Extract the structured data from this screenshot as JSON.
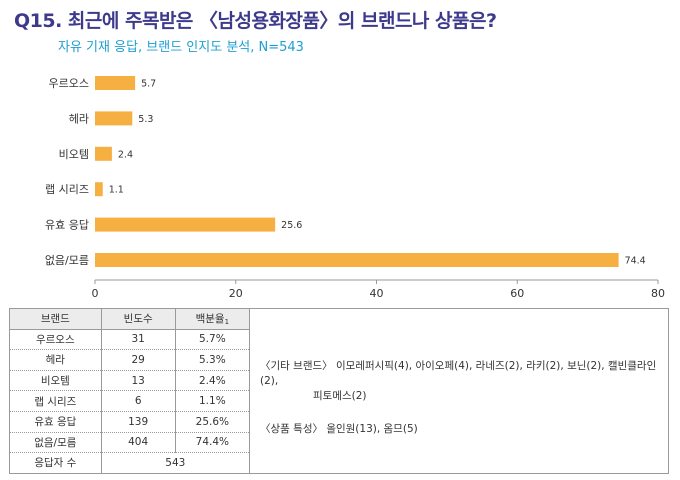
{
  "header": {
    "title": "Q15. 최근에 주목받은 〈남성용화장품〉의 브랜드나 상품은?",
    "subtitle": "자유 기재 응답, 브랜드 인지도 분석, N=543"
  },
  "chart_data": {
    "type": "bar",
    "orientation": "horizontal",
    "categories": [
      "우르오스",
      "헤라",
      "비오템",
      "랩 시리즈",
      "유효 응답",
      "없음/모름"
    ],
    "values": [
      5.7,
      5.3,
      2.4,
      1.1,
      25.6,
      74.4
    ],
    "value_labels": [
      "5.7",
      "5.3",
      "2.4",
      "1.1",
      "25.6",
      "74.4"
    ],
    "xlim": [
      0,
      80
    ],
    "xticks": [
      "0",
      "20",
      "40",
      "60",
      "80"
    ],
    "bar_color": "#f5b041",
    "grid": false
  },
  "table": {
    "headers": [
      "브랜드",
      "빈도수",
      "백분율"
    ],
    "header_note": "1",
    "rows": [
      [
        "우르오스",
        "31",
        "5.7%"
      ],
      [
        "헤라",
        "29",
        "5.3%"
      ],
      [
        "비오템",
        "13",
        "2.4%"
      ],
      [
        "랩 시리즈",
        "6",
        "1.1%"
      ],
      [
        "유효 응답",
        "139",
        "25.6%"
      ],
      [
        "없음/모름",
        "404",
        "74.4%"
      ]
    ],
    "total_label": "응답자 수",
    "total_value": "543"
  },
  "notes": {
    "other_brands_line1": "〈기타 브랜드〉 이모레퍼시픽(4), 아이오페(4), 라네즈(2), 라키(2), 보닌(2), 캘빈클라인(2),",
    "other_brands_line2": "피토메스(2)",
    "product_features": "〈상품 특성〉 올인원(13), 옴므(5)"
  }
}
